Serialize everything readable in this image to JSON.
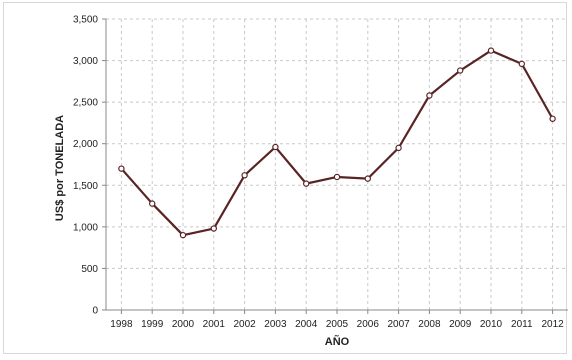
{
  "chart_data": {
    "type": "line",
    "title": "",
    "xlabel": "AÑO",
    "ylabel": "US$ por TONELADA",
    "categories": [
      "1998",
      "1999",
      "2000",
      "2001",
      "2002",
      "2003",
      "2004",
      "2005",
      "2006",
      "2007",
      "2008",
      "2009",
      "2010",
      "2011",
      "2012"
    ],
    "series": [
      {
        "values": [
          1700,
          1280,
          900,
          980,
          1620,
          1960,
          1520,
          1600,
          1580,
          1950,
          2580,
          2880,
          3120,
          2960,
          2300
        ]
      }
    ],
    "ylim": [
      0,
      3500
    ],
    "yticks": [
      0,
      500,
      1000,
      1500,
      2000,
      2500,
      3000,
      3500
    ],
    "ytick_labels": [
      "0",
      "500",
      "1,000",
      "1,500",
      "2,000",
      "2,500",
      "3,000",
      "3,500"
    ],
    "grid": true,
    "line_color": "#5a2424",
    "marker_fill": "#ffffff",
    "grid_color": "#c8c8c8",
    "legend": "none"
  }
}
